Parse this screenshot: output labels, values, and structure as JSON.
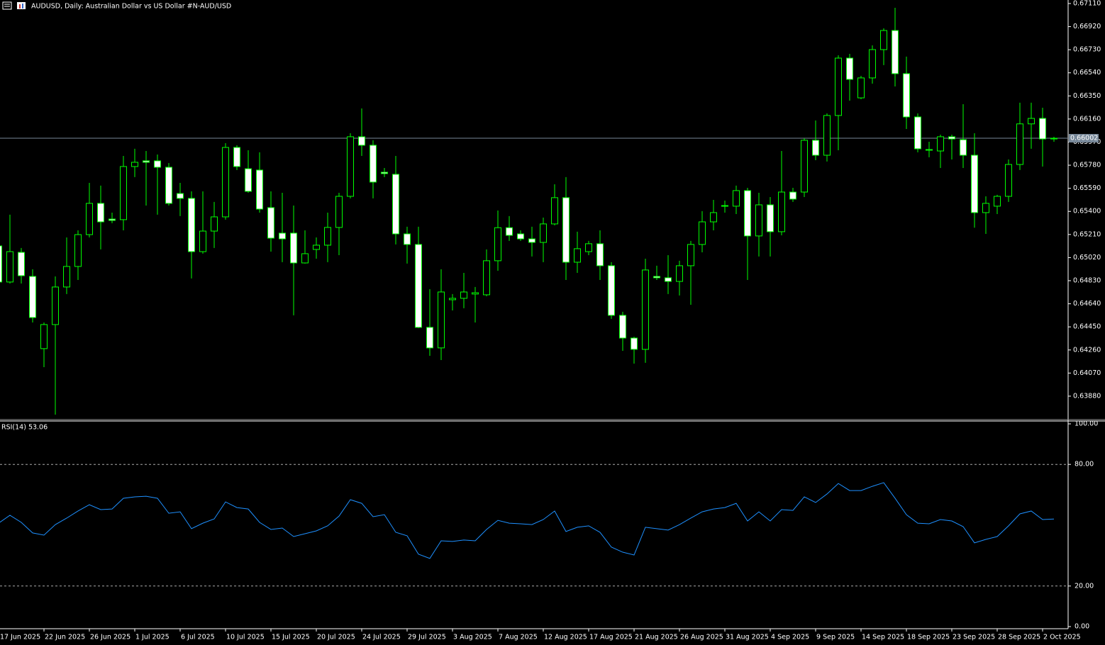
{
  "chart_data": [
    {
      "type": "candlestick",
      "title": "AUDUSD, Daily:  Australian Dollar vs US Dollar #N-AUD/USD",
      "categories": [
        "17 Jun 2025",
        null,
        null,
        null,
        "22 Jun 2025",
        null,
        null,
        null,
        "26 Jun 2025",
        null,
        null,
        null,
        "1 Jul 2025",
        null,
        null,
        null,
        "6 Jul 2025",
        null,
        null,
        null,
        "10 Jul 2025",
        null,
        null,
        null,
        "15 Jul 2025",
        null,
        null,
        null,
        "20 Jul 2025",
        null,
        null,
        null,
        "24 Jul 2025",
        null,
        null,
        null,
        "29 Jul 2025",
        null,
        null,
        null,
        "3 Aug 2025",
        null,
        null,
        null,
        "7 Aug 2025",
        null,
        null,
        null,
        "12 Aug 2025",
        null,
        null,
        null,
        "17 Aug 2025",
        null,
        null,
        null,
        "21 Aug 2025",
        null,
        null,
        null,
        "26 Aug 2025",
        null,
        null,
        null,
        "31 Aug 2025",
        null,
        null,
        null,
        "4 Sep 2025",
        null,
        null,
        null,
        "9 Sep 2025",
        null,
        null,
        null,
        "14 Sep 2025",
        null,
        null,
        null,
        "18 Sep 2025",
        null,
        null,
        null,
        "23 Sep 2025",
        null,
        null,
        null,
        "28 Sep 2025",
        null,
        null,
        null,
        "2 Oct 2025",
        null
      ],
      "open": [
        0.65116,
        0.64819,
        0.65063,
        0.64865,
        0.64271,
        0.64469,
        0.64778,
        0.64947,
        0.65209,
        0.65466,
        0.65337,
        0.65332,
        0.65769,
        0.65816,
        0.65816,
        0.65763,
        0.65547,
        0.65507,
        0.65069,
        0.65238,
        0.65355,
        0.65926,
        0.65751,
        0.6574,
        0.65431,
        0.65221,
        0.65221,
        0.64976,
        0.65087,
        0.65122,
        0.65268,
        0.65524,
        0.66014,
        0.65944,
        0.65722,
        0.65705,
        0.65215,
        0.65128,
        0.64446,
        0.64277,
        0.64673,
        0.64685,
        0.6472,
        0.64714,
        0.64994,
        0.65266,
        0.65215,
        0.65174,
        0.65145,
        0.65297,
        0.65513,
        0.64982,
        0.65069,
        0.65134,
        0.64953,
        0.64545,
        0.64358,
        0.64265,
        0.64865,
        0.64854,
        0.64824,
        0.64953,
        0.65128,
        0.65314,
        0.65443,
        0.65443,
        0.65571,
        0.65198,
        0.65454,
        0.65233,
        0.65559,
        0.65559,
        0.65985,
        0.65862,
        0.66189,
        0.66661,
        0.66334,
        0.66498,
        0.66731,
        0.66888,
        0.66533,
        0.66177,
        0.65903,
        0.65897,
        0.66014,
        0.6599,
        0.65862,
        0.6539,
        0.65443,
        0.65524,
        0.65786,
        0.6612,
        0.66165,
        0.65996
      ],
      "high": [
        0.65157,
        0.65373,
        0.65099,
        0.64924,
        0.64486,
        0.64865,
        0.65186,
        0.65244,
        0.65635,
        0.65612,
        0.6539,
        0.65856,
        0.65915,
        0.65897,
        0.65868,
        0.65798,
        0.65635,
        0.65565,
        0.65565,
        0.65478,
        0.65961,
        0.65944,
        0.65903,
        0.65886,
        0.65565,
        0.65553,
        0.65448,
        0.65244,
        0.65186,
        0.6539,
        0.65553,
        0.66043,
        0.66247,
        0.65985,
        0.65757,
        0.65856,
        0.65274,
        0.65274,
        0.6476,
        0.64924,
        0.6472,
        0.64894,
        0.64778,
        0.65087,
        0.65407,
        0.65361,
        0.65244,
        0.65274,
        0.65349,
        0.65623,
        0.65682,
        0.65233,
        0.65157,
        0.65244,
        0.64982,
        0.64574,
        0.64369,
        0.65011,
        0.64953,
        0.6504,
        0.64994,
        0.65157,
        0.65402,
        0.65495,
        0.65489,
        0.65612,
        0.65594,
        0.65553,
        0.65518,
        0.65897,
        0.65594,
        0.66002,
        0.66148,
        0.66206,
        0.66684,
        0.66696,
        0.66515,
        0.66766,
        0.66906,
        0.67075,
        0.66673,
        0.66206,
        0.65973,
        0.66031,
        0.66031,
        0.66282,
        0.66043,
        0.65524,
        0.65536,
        0.65827,
        0.66294,
        0.66294,
        0.66253,
        0.66014
      ],
      "low": [
        0.64807,
        0.64807,
        0.64807,
        0.64486,
        0.64119,
        0.63728,
        0.6472,
        0.64836,
        0.65186,
        0.65087,
        0.65303,
        0.65244,
        0.65682,
        0.65448,
        0.65373,
        0.65448,
        0.65361,
        0.64848,
        0.65052,
        0.65099,
        0.65332,
        0.6574,
        0.65553,
        0.6539,
        0.65069,
        0.64982,
        0.64545,
        0.64971,
        0.65011,
        0.64982,
        0.6504,
        0.65507,
        0.65856,
        0.65507,
        0.65682,
        0.65128,
        0.64971,
        0.6444,
        0.64212,
        0.64177,
        0.64585,
        0.64603,
        0.64486,
        0.64702,
        0.64912,
        0.65157,
        0.65157,
        0.65029,
        0.64982,
        0.65285,
        0.64836,
        0.64894,
        0.6504,
        0.64836,
        0.64516,
        0.64253,
        0.64148,
        0.64154,
        0.64836,
        0.6472,
        0.64708,
        0.64632,
        0.65063,
        0.65244,
        0.6539,
        0.65378,
        0.64836,
        0.65029,
        0.65029,
        0.65203,
        0.65478,
        0.65518,
        0.65821,
        0.6581,
        0.65903,
        0.66311,
        0.66323,
        0.66451,
        0.66603,
        0.66428,
        0.66078,
        0.65886,
        0.65845,
        0.65757,
        0.65827,
        0.65757,
        0.65266,
        0.65215,
        0.65378,
        0.65478,
        0.6574,
        0.65915,
        0.65769,
        0.65973
      ],
      "close": [
        0.64819,
        0.65069,
        0.64871,
        0.64527,
        0.64469,
        0.64778,
        0.64947,
        0.65209,
        0.65466,
        0.65314,
        0.65326,
        0.65769,
        0.65804,
        0.65804,
        0.65763,
        0.65466,
        0.65507,
        0.65069,
        0.65238,
        0.65355,
        0.65926,
        0.65769,
        0.65565,
        0.65419,
        0.6518,
        0.65174,
        0.64976,
        0.65052,
        0.65122,
        0.65268,
        0.65524,
        0.66014,
        0.65944,
        0.65641,
        0.65711,
        0.65215,
        0.65128,
        0.64446,
        0.64277,
        0.64737,
        0.64685,
        0.64737,
        0.64731,
        0.64994,
        0.65266,
        0.65203,
        0.65174,
        0.65145,
        0.65297,
        0.65513,
        0.64982,
        0.65093,
        0.65134,
        0.64953,
        0.64545,
        0.64358,
        0.64265,
        0.64918,
        0.64854,
        0.64824,
        0.64953,
        0.65128,
        0.65314,
        0.6539,
        0.65448,
        0.65571,
        0.65198,
        0.65454,
        0.65233,
        0.65559,
        0.65501,
        0.65985,
        0.65862,
        0.66189,
        0.66661,
        0.66486,
        0.66498,
        0.66731,
        0.66888,
        0.66533,
        0.66177,
        0.65915,
        0.65909,
        0.66014,
        0.65996,
        0.65862,
        0.6539,
        0.65466,
        0.65524,
        0.65786,
        0.6612,
        0.66165,
        0.65996,
        0.66002
      ],
      "up_color": "#00ff00",
      "down_color": "#ffffff",
      "wick_color": "#00ff00",
      "current_price": 0.66002,
      "current_price_color": "#778899",
      "ylim": [
        0.63693,
        0.67139
      ],
      "yticks": [
        {
          "value": 0.6711,
          "label": "0.67110"
        },
        {
          "value": 0.6692,
          "label": "0.66920"
        },
        {
          "value": 0.6673,
          "label": "0.66730"
        },
        {
          "value": 0.6654,
          "label": "0.66540"
        },
        {
          "value": 0.6635,
          "label": "0.66350"
        },
        {
          "value": 0.6616,
          "label": "0.66160"
        },
        {
          "value": 0.6597,
          "label": "0.65970"
        },
        {
          "value": 0.6578,
          "label": "0.65780"
        },
        {
          "value": 0.6559,
          "label": "0.65590"
        },
        {
          "value": 0.654,
          "label": "0.65400"
        },
        {
          "value": 0.6521,
          "label": "0.65210"
        },
        {
          "value": 0.6502,
          "label": "0.65020"
        },
        {
          "value": 0.6483,
          "label": "0.64830"
        },
        {
          "value": 0.6464,
          "label": "0.64640"
        },
        {
          "value": 0.6445,
          "label": "0.64450"
        },
        {
          "value": 0.6426,
          "label": "0.64260"
        },
        {
          "value": 0.6407,
          "label": "0.64070"
        },
        {
          "value": 0.6388,
          "label": "0.63880"
        }
      ]
    },
    {
      "type": "line",
      "title": "RSI(14) 53.06",
      "values": [
        51.0,
        54.9,
        51.4,
        46.2,
        45.1,
        50.3,
        53.5,
        57.0,
        60.1,
        57.7,
        58.0,
        63.3,
        64.0,
        64.3,
        63.3,
        55.9,
        56.6,
        48.3,
        51.0,
        53.1,
        61.5,
        58.7,
        58.0,
        51.4,
        47.9,
        48.6,
        44.4,
        45.8,
        47.2,
        49.7,
        54.5,
        62.6,
        60.8,
        54.2,
        55.2,
        46.5,
        44.8,
        35.7,
        33.6,
        42.3,
        42.0,
        42.7,
        42.3,
        47.9,
        52.4,
        51.0,
        50.7,
        50.3,
        52.8,
        57.0,
        46.9,
        49.0,
        49.7,
        46.5,
        39.2,
        36.7,
        35.3,
        49.0,
        48.3,
        47.6,
        50.3,
        53.5,
        56.6,
        58.0,
        58.7,
        60.8,
        52.1,
        56.6,
        52.1,
        57.7,
        57.3,
        64.0,
        61.2,
        65.4,
        70.6,
        67.1,
        67.1,
        69.2,
        71.0,
        63.3,
        55.2,
        51.0,
        50.7,
        52.8,
        52.1,
        49.3,
        41.3,
        43.0,
        44.4,
        49.7,
        55.6,
        57.0,
        52.8,
        53.06
      ],
      "color": "#1e90ff",
      "ylim": [
        0,
        100
      ],
      "yticks": [
        {
          "value": 100,
          "label": "100.00"
        },
        {
          "value": 80,
          "label": "80.00"
        },
        {
          "value": 20,
          "label": "20.00"
        },
        {
          "value": 0,
          "label": "0.00"
        }
      ],
      "levels": [
        80,
        20
      ]
    }
  ]
}
